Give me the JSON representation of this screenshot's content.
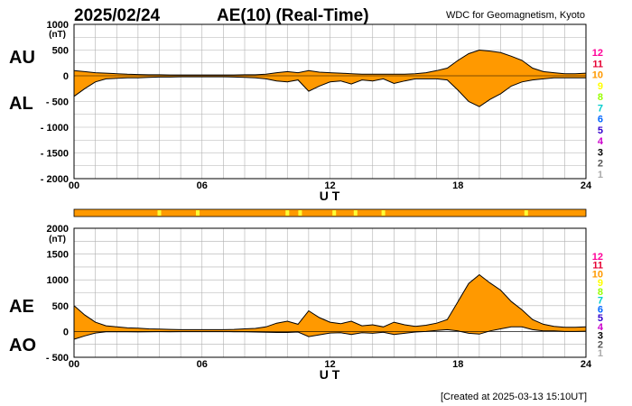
{
  "header": {
    "date": "2025/02/24",
    "title": "AE(10) (Real-Time)",
    "source": "WDC for Geomagnetism, Kyoto"
  },
  "footer": {
    "created": "[Created at 2025-03-13 15:10UT]"
  },
  "colors": {
    "fill": "#ff9900",
    "highlight": "#ffff33",
    "grid": "#b0b0b0",
    "line": "#000000"
  },
  "chart_data": [
    {
      "type": "area",
      "panel": "AU/AL",
      "unit": "(nT)",
      "left_labels": [
        "AU",
        "AL"
      ],
      "xlabel": "U T",
      "x_ticks": [
        0,
        6,
        12,
        18,
        24
      ],
      "x_tick_labels": [
        "00",
        "06",
        "12",
        "18",
        "24"
      ],
      "ylim": [
        -2000,
        1000
      ],
      "y_ticks": [
        1000,
        500,
        0,
        -500,
        -1000,
        -1500,
        -2000
      ],
      "y_tick_labels": [
        "1000",
        "500",
        "0",
        "- 500",
        "- 1000",
        "- 1500",
        "- 2000"
      ],
      "grid": true,
      "series": [
        {
          "name": "AU",
          "x": [
            0,
            0.5,
            1,
            1.5,
            2,
            2.5,
            3,
            3.5,
            4,
            4.5,
            5,
            5.5,
            6,
            6.5,
            7,
            7.5,
            8,
            8.5,
            9,
            9.5,
            10,
            10.5,
            11,
            11.5,
            12,
            12.5,
            13,
            13.5,
            14,
            14.5,
            15,
            15.5,
            16,
            16.5,
            17,
            17.5,
            18,
            18.5,
            19,
            19.5,
            20,
            20.5,
            21,
            21.5,
            22,
            22.5,
            23,
            23.5,
            24
          ],
          "values": [
            100,
            80,
            60,
            50,
            40,
            30,
            25,
            20,
            20,
            15,
            15,
            15,
            15,
            15,
            15,
            15,
            20,
            20,
            30,
            60,
            80,
            60,
            100,
            70,
            60,
            50,
            40,
            30,
            30,
            30,
            30,
            30,
            40,
            60,
            100,
            150,
            300,
            430,
            500,
            480,
            450,
            380,
            300,
            150,
            80,
            60,
            40,
            40,
            50
          ]
        },
        {
          "name": "AL",
          "x": [
            0,
            0.5,
            1,
            1.5,
            2,
            2.5,
            3,
            3.5,
            4,
            4.5,
            5,
            5.5,
            6,
            6.5,
            7,
            7.5,
            8,
            8.5,
            9,
            9.5,
            10,
            10.5,
            11,
            11.5,
            12,
            12.5,
            13,
            13.5,
            14,
            14.5,
            15,
            15.5,
            16,
            16.5,
            17,
            17.5,
            18,
            18.5,
            19,
            19.5,
            20,
            20.5,
            21,
            21.5,
            22,
            22.5,
            23,
            23.5,
            24
          ],
          "values": [
            -400,
            -250,
            -120,
            -60,
            -50,
            -40,
            -40,
            -30,
            -25,
            -25,
            -20,
            -20,
            -20,
            -20,
            -20,
            -25,
            -30,
            -40,
            -60,
            -100,
            -120,
            -80,
            -300,
            -200,
            -120,
            -100,
            -160,
            -80,
            -100,
            -60,
            -150,
            -100,
            -60,
            -60,
            -60,
            -80,
            -280,
            -500,
            -600,
            -460,
            -350,
            -200,
            -120,
            -80,
            -60,
            -40,
            -40,
            -40,
            -40
          ]
        }
      ],
      "side_legend": [
        "12",
        "11",
        "10",
        "9",
        "8",
        "7",
        "6",
        "5",
        "4",
        "3",
        "2",
        "1"
      ],
      "side_legend_colors": [
        "#ff0099",
        "#e60033",
        "#ff9900",
        "#ffff00",
        "#99ff00",
        "#00cccc",
        "#0066ff",
        "#3300cc",
        "#cc00cc",
        "#000000",
        "#555555",
        "#aaaaaa"
      ]
    },
    {
      "type": "area",
      "panel": "AE/AO",
      "unit": "(nT)",
      "left_labels": [
        "AE",
        "AO"
      ],
      "xlabel": "U T",
      "x_ticks": [
        0,
        6,
        12,
        18,
        24
      ],
      "x_tick_labels": [
        "00",
        "06",
        "12",
        "18",
        "24"
      ],
      "ylim": [
        -500,
        2000
      ],
      "y_ticks": [
        2000,
        1500,
        1000,
        500,
        0,
        -500
      ],
      "y_tick_labels": [
        "2000",
        "1500",
        "1000",
        "500",
        "0",
        "- 500"
      ],
      "grid": true,
      "series": [
        {
          "name": "AE",
          "x": [
            0,
            0.5,
            1,
            1.5,
            2,
            2.5,
            3,
            3.5,
            4,
            4.5,
            5,
            5.5,
            6,
            6.5,
            7,
            7.5,
            8,
            8.5,
            9,
            9.5,
            10,
            10.5,
            11,
            11.5,
            12,
            12.5,
            13,
            13.5,
            14,
            14.5,
            15,
            15.5,
            16,
            16.5,
            17,
            17.5,
            18,
            18.5,
            19,
            19.5,
            20,
            20.5,
            21,
            21.5,
            22,
            22.5,
            23,
            23.5,
            24
          ],
          "values": [
            500,
            320,
            180,
            110,
            90,
            70,
            65,
            50,
            45,
            40,
            35,
            35,
            35,
            35,
            35,
            40,
            50,
            60,
            90,
            160,
            200,
            140,
            400,
            270,
            180,
            150,
            200,
            110,
            130,
            90,
            180,
            130,
            100,
            120,
            160,
            230,
            580,
            930,
            1100,
            940,
            800,
            580,
            420,
            230,
            140,
            100,
            80,
            80,
            90
          ]
        },
        {
          "name": "AO",
          "x": [
            0,
            0.5,
            1,
            1.5,
            2,
            2.5,
            3,
            3.5,
            4,
            4.5,
            5,
            5.5,
            6,
            6.5,
            7,
            7.5,
            8,
            8.5,
            9,
            9.5,
            10,
            10.5,
            11,
            11.5,
            12,
            12.5,
            13,
            13.5,
            14,
            14.5,
            15,
            15.5,
            16,
            16.5,
            17,
            17.5,
            18,
            18.5,
            19,
            19.5,
            20,
            20.5,
            21,
            21.5,
            22,
            22.5,
            23,
            23.5,
            24
          ],
          "values": [
            -150,
            -85,
            -30,
            -5,
            -5,
            -5,
            -8,
            -5,
            -3,
            -5,
            -3,
            -3,
            -3,
            -3,
            -3,
            -5,
            -5,
            -10,
            -15,
            -20,
            -20,
            -10,
            -100,
            -65,
            -30,
            -25,
            -60,
            -25,
            -35,
            -15,
            -60,
            -35,
            -10,
            0,
            20,
            35,
            10,
            -35,
            -50,
            10,
            50,
            90,
            90,
            35,
            10,
            10,
            0,
            0,
            5
          ]
        }
      ],
      "side_legend": [
        "12",
        "11",
        "10",
        "9",
        "8",
        "7",
        "6",
        "5",
        "4",
        "3",
        "2",
        "1"
      ],
      "side_legend_colors": [
        "#ff0099",
        "#e60033",
        "#ff9900",
        "#ffff00",
        "#99ff00",
        "#00cccc",
        "#0066ff",
        "#3300cc",
        "#cc00cc",
        "#000000",
        "#555555",
        "#aaaaaa"
      ]
    }
  ],
  "station_bar": {
    "xlim": [
      0,
      24
    ],
    "highlight_hours": [
      4.0,
      5.8,
      10.0,
      10.6,
      12.2,
      13.2,
      14.5,
      21.2
    ]
  }
}
